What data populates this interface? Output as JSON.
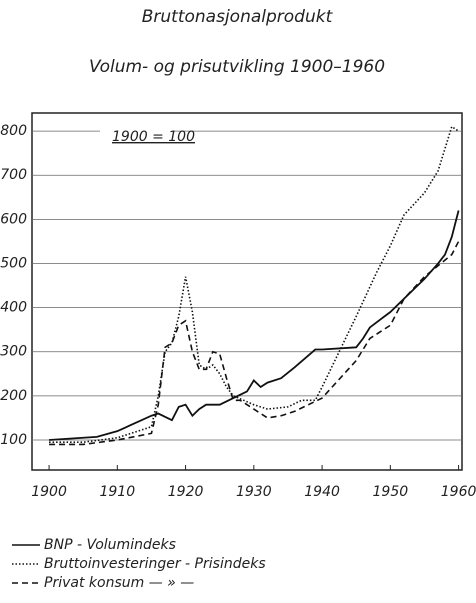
{
  "chart_data": {
    "type": "line",
    "title": "Bruttonasjonalprodukt",
    "subtitle": "Volum- og prisutvikling 1900–1960",
    "annotation": "1900 = 100",
    "xlim": [
      1897.5,
      1960.5
    ],
    "xticks": [
      1900,
      1910,
      1920,
      1930,
      1940,
      1950,
      1960
    ],
    "ylim": [
      32,
      841
    ],
    "yticks": [
      100,
      200,
      300,
      400,
      500,
      600,
      700,
      800
    ],
    "grid": true,
    "series": [
      {
        "name": "BNP - Volumindeks",
        "color": "#111111",
        "dash": "solid",
        "x": [
          1900,
          1905,
          1907,
          1910,
          1915,
          1916,
          1918,
          1919,
          1920,
          1921,
          1922,
          1923,
          1925,
          1927,
          1929,
          1930,
          1931,
          1932,
          1934,
          1936,
          1939,
          1940,
          1945,
          1946,
          1947,
          1950,
          1952,
          1955,
          1957,
          1958,
          1959,
          1960
        ],
        "values": [
          100,
          105,
          107,
          120,
          155,
          160,
          145,
          175,
          180,
          155,
          170,
          180,
          180,
          195,
          210,
          235,
          220,
          230,
          240,
          265,
          305,
          305,
          310,
          330,
          355,
          390,
          420,
          465,
          500,
          520,
          560,
          620
        ]
      },
      {
        "name": "Bruttoinvesteringer - Prisindeks",
        "color": "#111111",
        "dash": "dotted",
        "x": [
          1900,
          1905,
          1910,
          1915,
          1916,
          1917,
          1918,
          1919,
          1920,
          1921,
          1922,
          1923,
          1924,
          1925,
          1926,
          1927,
          1930,
          1932,
          1935,
          1937,
          1939,
          1940,
          1945,
          1948,
          1950,
          1952,
          1955,
          1957,
          1958,
          1959,
          1960
        ],
        "values": [
          95,
          95,
          105,
          130,
          200,
          300,
          320,
          380,
          470,
          390,
          270,
          260,
          270,
          250,
          220,
          200,
          180,
          170,
          175,
          190,
          190,
          220,
          380,
          480,
          540,
          610,
          660,
          710,
          760,
          810,
          800
        ]
      },
      {
        "name": "Privat konsum — » —",
        "color": "#111111",
        "dash": "dashed",
        "x": [
          1900,
          1905,
          1910,
          1915,
          1916,
          1917,
          1918,
          1919,
          1920,
          1921,
          1922,
          1923,
          1924,
          1925,
          1926,
          1927,
          1928,
          1930,
          1932,
          1934,
          1936,
          1938,
          1940,
          1945,
          1947,
          1950,
          1952,
          1955,
          1957,
          1959,
          1960
        ],
        "values": [
          90,
          90,
          100,
          115,
          180,
          310,
          320,
          360,
          370,
          300,
          260,
          260,
          300,
          295,
          240,
          190,
          190,
          170,
          150,
          155,
          165,
          180,
          195,
          280,
          330,
          360,
          420,
          470,
          495,
          520,
          550
        ]
      }
    ]
  }
}
